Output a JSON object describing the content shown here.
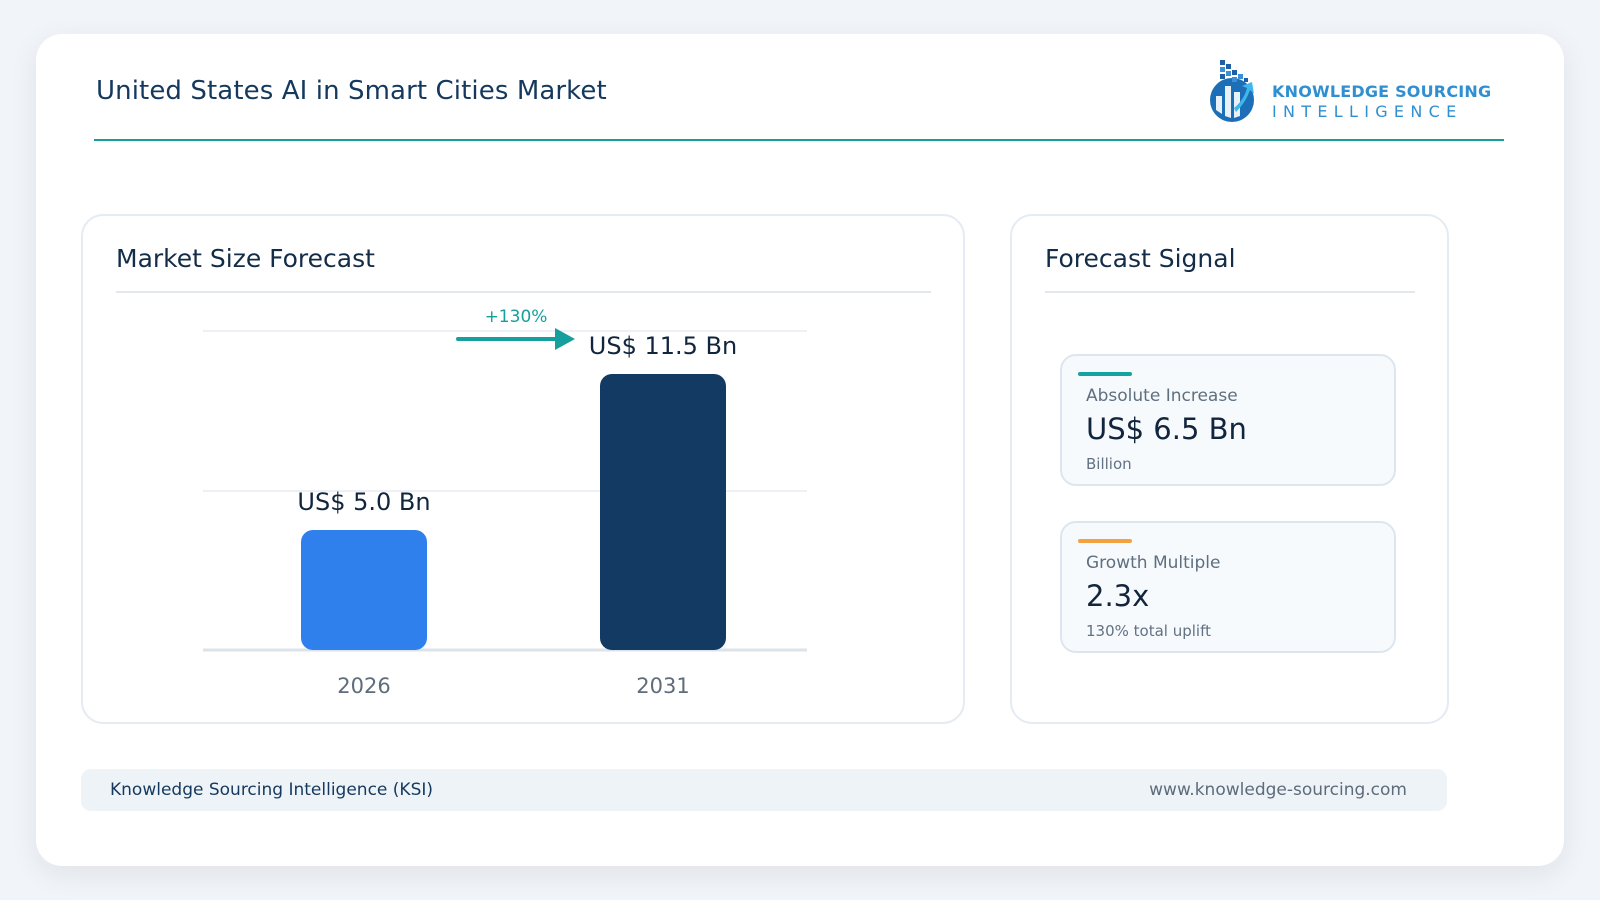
{
  "header": {
    "title": "United States AI in Smart Cities Market",
    "logo_line1": "KNOWLEDGE SOURCING",
    "logo_line2": "INTELLIGENCE"
  },
  "left_panel": {
    "title": "Market Size Forecast"
  },
  "right_panel": {
    "title": "Forecast Signal"
  },
  "chart_data": {
    "type": "bar",
    "categories": [
      "2026",
      "2031"
    ],
    "values": [
      5.0,
      11.5
    ],
    "data_labels": [
      "US$ 5.0 Bn",
      "US$ 11.5 Bn"
    ],
    "ylim": [
      0,
      13
    ],
    "grid": true,
    "growth_label": "+130%",
    "colors": [
      "#2f80ec",
      "#123a63"
    ]
  },
  "metrics": [
    {
      "label": "Absolute Increase",
      "value": "US$ 6.5 Bn",
      "sub": "Billion",
      "accent": "#15a3a1"
    },
    {
      "label": "Growth Multiple",
      "value": "2.3x",
      "sub": "130% total uplift",
      "accent": "#f3a23f"
    }
  ],
  "footer": {
    "left": "Knowledge Sourcing Intelligence (KSI)",
    "right": "www.knowledge-sourcing.com"
  },
  "colors": {
    "accent_teal": "#169f9d",
    "navy": "#15395e"
  }
}
